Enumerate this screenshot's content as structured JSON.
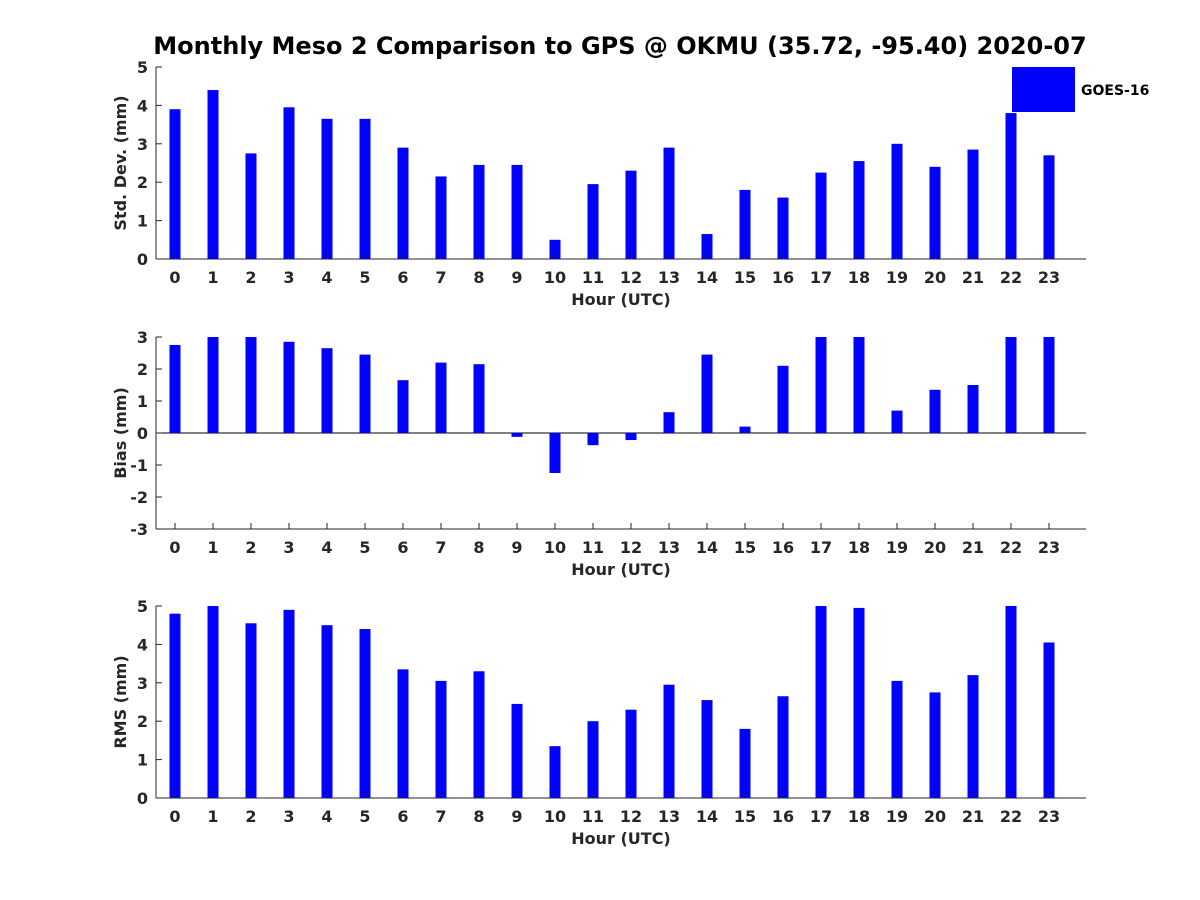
{
  "title": "Monthly Meso 2 Comparison to GPS @ OKMU (35.72, -95.40) 2020-07",
  "colors": {
    "bar": "#0000ff",
    "axis": "#262626",
    "background": "#ffffff"
  },
  "chart_data": [
    {
      "type": "bar",
      "ylabel": "Std. Dev. (mm)",
      "xlabel": "Hour (UTC)",
      "ylim": [
        0,
        5
      ],
      "yticks": [
        "0",
        "1",
        "2",
        "3",
        "4",
        "5"
      ],
      "categories": [
        "0",
        "1",
        "2",
        "3",
        "4",
        "5",
        "6",
        "7",
        "8",
        "9",
        "10",
        "11",
        "12",
        "13",
        "14",
        "15",
        "16",
        "17",
        "18",
        "19",
        "20",
        "21",
        "22",
        "23"
      ],
      "series": [
        {
          "name": "GOES-16",
          "values": [
            3.9,
            4.4,
            2.75,
            3.95,
            3.65,
            3.65,
            2.9,
            2.15,
            2.45,
            2.45,
            0.5,
            1.95,
            2.3,
            2.9,
            0.65,
            1.8,
            1.6,
            2.25,
            2.55,
            3.0,
            2.4,
            2.85,
            3.8,
            2.7
          ]
        }
      ],
      "legend": {
        "position": "top-right"
      }
    },
    {
      "type": "bar",
      "ylabel": "Bias (mm)",
      "xlabel": "Hour (UTC)",
      "ylim": [
        -3,
        3
      ],
      "yticks": [
        "-3",
        "-2",
        "-1",
        "0",
        "1",
        "2",
        "3"
      ],
      "categories": [
        "0",
        "1",
        "2",
        "3",
        "4",
        "5",
        "6",
        "7",
        "8",
        "9",
        "10",
        "11",
        "12",
        "13",
        "14",
        "15",
        "16",
        "17",
        "18",
        "19",
        "20",
        "21",
        "22",
        "23"
      ],
      "series": [
        {
          "name": "GOES-16",
          "values": [
            2.75,
            3.0,
            3.0,
            2.85,
            2.65,
            2.45,
            1.65,
            2.2,
            2.15,
            -0.12,
            -1.25,
            -0.38,
            -0.22,
            0.65,
            2.45,
            0.2,
            2.1,
            3.0,
            3.0,
            0.7,
            1.35,
            1.5,
            3.0,
            3.0
          ]
        }
      ]
    },
    {
      "type": "bar",
      "ylabel": "RMS (mm)",
      "xlabel": "Hour (UTC)",
      "ylim": [
        0,
        5
      ],
      "yticks": [
        "0",
        "1",
        "2",
        "3",
        "4",
        "5"
      ],
      "categories": [
        "0",
        "1",
        "2",
        "3",
        "4",
        "5",
        "6",
        "7",
        "8",
        "9",
        "10",
        "11",
        "12",
        "13",
        "14",
        "15",
        "16",
        "17",
        "18",
        "19",
        "20",
        "21",
        "22",
        "23"
      ],
      "series": [
        {
          "name": "GOES-16",
          "values": [
            4.8,
            5.0,
            4.55,
            4.9,
            4.5,
            4.4,
            3.35,
            3.05,
            3.3,
            2.45,
            1.35,
            2.0,
            2.3,
            2.95,
            2.55,
            1.8,
            2.65,
            5.0,
            4.95,
            3.05,
            2.75,
            3.2,
            5.0,
            4.05
          ]
        }
      ]
    }
  ]
}
